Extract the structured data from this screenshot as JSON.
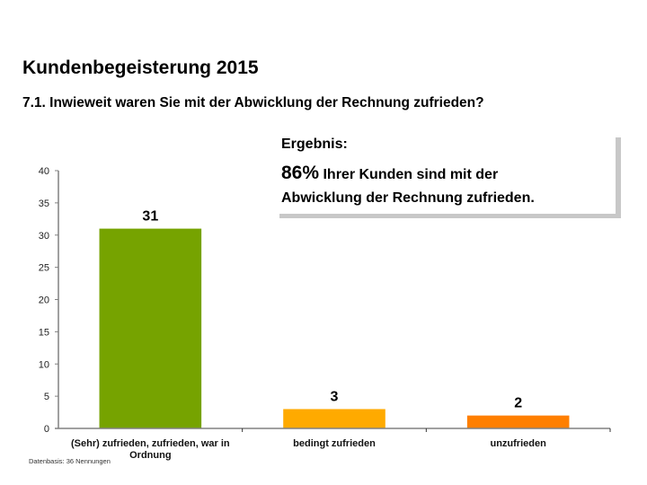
{
  "header": {
    "title": "Kundenbegeisterung 2015",
    "question": "7.1. Inwieweit waren Sie mit der Abwicklung der Rechnung zufrieden?"
  },
  "result": {
    "label": "Ergebnis:",
    "percent": "86%",
    "line1_rest": " Ihrer Kunden sind mit der",
    "line2": "Abwicklung der Rechnung zufrieden."
  },
  "footnote": "Datenbasis: 36 Nennungen",
  "chart_data": {
    "type": "bar",
    "title": "",
    "xlabel": "",
    "ylabel": "",
    "categories": [
      [
        "(Sehr) zufrieden, zufrieden, war in",
        "Ordnung"
      ],
      [
        "bedingt zufrieden"
      ],
      [
        "unzufrieden"
      ]
    ],
    "values": [
      31,
      3,
      2
    ],
    "data_labels": [
      "31",
      "3",
      "2"
    ],
    "colors": [
      "#76a300",
      "#ffaa00",
      "#ff7f00"
    ],
    "ylim": [
      0,
      40
    ],
    "yticks": [
      0,
      5,
      10,
      15,
      20,
      25,
      30,
      35,
      40
    ],
    "grid": false,
    "legend": "none",
    "axis_color": "#808080"
  }
}
